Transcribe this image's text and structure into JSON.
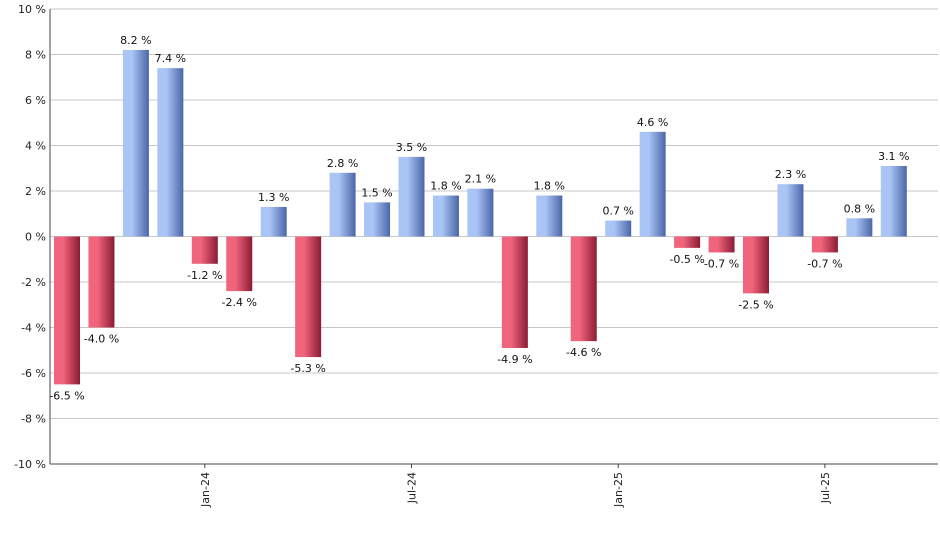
{
  "chart_data": {
    "type": "bar",
    "title": "",
    "xlabel": "",
    "ylabel": "",
    "ylim": [
      -10,
      10
    ],
    "y_ticks": [
      -10,
      -8,
      -6,
      -4,
      -2,
      0,
      2,
      4,
      6,
      8,
      10
    ],
    "y_tick_suffix": " %",
    "grid": true,
    "legend": "none",
    "x_tick_labels": [
      {
        "label": "Jan-24",
        "index": 4
      },
      {
        "label": "Jul-24",
        "index": 10
      },
      {
        "label": "Jan-25",
        "index": 16
      },
      {
        "label": "Jul-25",
        "index": 22
      }
    ],
    "series": [
      {
        "values": [
          -6.5,
          -4.0,
          8.2,
          7.4,
          -1.2,
          -2.4,
          1.3,
          -5.3,
          2.8,
          1.5,
          3.5,
          1.8,
          2.1,
          -4.9,
          1.8,
          -4.6,
          0.7,
          4.6,
          -0.5,
          -0.7,
          -2.5,
          2.3,
          -0.7,
          0.8,
          3.1
        ],
        "labels": [
          "-6.5 %",
          "-4.0 %",
          "8.2 %",
          "7.4 %",
          "-1.2 %",
          "-2.4 %",
          "1.3 %",
          "-5.3 %",
          "2.8 %",
          "1.5 %",
          "3.5 %",
          "1.8 %",
          "2.1 %",
          "-4.9 %",
          "1.8 %",
          "-4.6 %",
          "0.7 %",
          "4.6 %",
          "-0.5 %",
          "-0.7 %",
          "-2.5 %",
          "2.3 %",
          "-0.7 %",
          "0.8 %",
          "3.1 %"
        ]
      }
    ],
    "colors": {
      "positive_light": "#a9c4f5",
      "positive_dark": "#4a66a8",
      "negative_light": "#f0647c",
      "negative_dark": "#8a1c34",
      "grid": "#c8c8c8",
      "axis": "#444444"
    }
  }
}
